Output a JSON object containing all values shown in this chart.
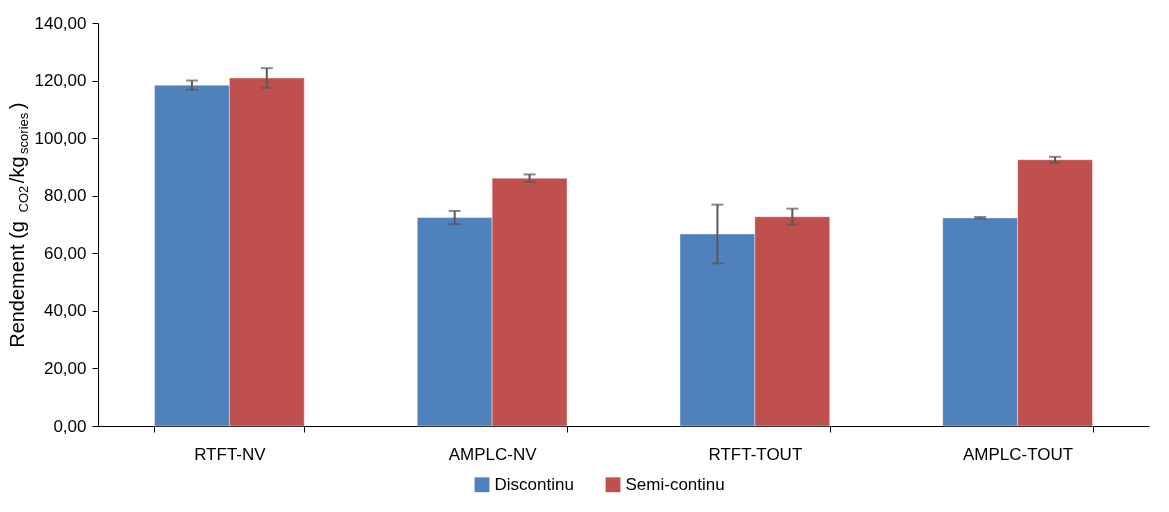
{
  "chart_data": {
    "type": "bar",
    "ylabel": "Rendement (g$_{CO2}$/kg$_{scories}$)",
    "categories": [
      "RTFT-NV",
      "AMPLC-NV",
      "RTFT-TOUT",
      "AMPLC-TOUT"
    ],
    "series": [
      {
        "name": "Discontinu",
        "color": "#4f81bd",
        "values": [
          118.4,
          72.4,
          66.7,
          72.3
        ],
        "errors": [
          1.6,
          2.3,
          10.2,
          0.3
        ]
      },
      {
        "name": "Semi-continu",
        "color": "#c0504d",
        "values": [
          120.9,
          86.1,
          72.7,
          92.5
        ],
        "errors": [
          3.4,
          1.3,
          2.8,
          1.0
        ]
      }
    ],
    "ylim": [
      0,
      140
    ],
    "yticks": [
      {
        "value": 0,
        "label": "0,00"
      },
      {
        "value": 20,
        "label": "20,00"
      },
      {
        "value": 40,
        "label": "40,00"
      },
      {
        "value": 60,
        "label": "60,00"
      },
      {
        "value": 80,
        "label": "80,00"
      },
      {
        "value": 100,
        "label": "100,00"
      },
      {
        "value": 120,
        "label": "120,00"
      },
      {
        "value": 140,
        "label": "140,00"
      }
    ],
    "grid": false,
    "legend": "bottom"
  }
}
